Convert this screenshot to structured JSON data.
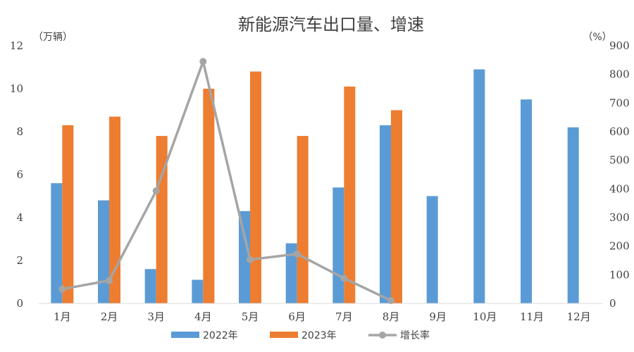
{
  "chart_data": {
    "type": "bar",
    "title": "新能源汽车出口量、增速",
    "left_unit": "（万辆）",
    "right_unit": "（%）",
    "categories": [
      "1月",
      "2月",
      "3月",
      "4月",
      "5月",
      "6月",
      "7月",
      "8月",
      "9月",
      "10月",
      "11月",
      "12月"
    ],
    "series": [
      {
        "name": "2022年",
        "type": "bar",
        "axis": "left",
        "color": "#5b9bd5",
        "values": [
          5.6,
          4.8,
          1.6,
          1.1,
          4.3,
          2.8,
          5.4,
          8.3,
          5.0,
          10.9,
          9.5,
          8.2
        ]
      },
      {
        "name": "2023年",
        "type": "bar",
        "axis": "left",
        "color": "#ed7d31",
        "values": [
          8.3,
          8.7,
          7.8,
          10.0,
          10.8,
          7.8,
          10.1,
          9.0,
          null,
          null,
          null,
          null
        ]
      },
      {
        "name": "增长率",
        "type": "line",
        "axis": "right",
        "color": "#a5a5a5",
        "values": [
          50,
          80,
          393,
          845,
          153,
          173,
          88,
          10,
          null,
          null,
          null,
          null
        ]
      }
    ],
    "left_axis": {
      "min": 0,
      "max": 12,
      "step": 2,
      "ticks": [
        "0",
        "2",
        "4",
        "6",
        "8",
        "10",
        "12"
      ]
    },
    "right_axis": {
      "min": 0,
      "max": 900,
      "step": 100,
      "ticks": [
        "0",
        "100",
        "200",
        "300",
        "400",
        "500",
        "600",
        "700",
        "800",
        "900"
      ]
    },
    "grid": false,
    "legend": "bottom"
  }
}
